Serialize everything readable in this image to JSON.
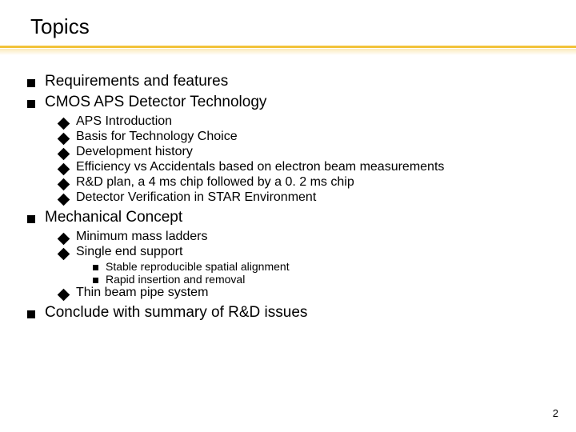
{
  "title": "Topics",
  "page_number": "2",
  "colors": {
    "underline": "#f2c33a",
    "text": "#000000",
    "background": "#ffffff"
  },
  "typography": {
    "font_family": "Comic Sans MS",
    "title_size_pt": 26,
    "l1_size_pt": 19,
    "l2_size_pt": 16,
    "l3_size_pt": 14
  },
  "items": {
    "l1_0": "Requirements and features",
    "l1_1": "CMOS APS Detector Technology",
    "l1_1_sub": {
      "l2_0": "APS Introduction",
      "l2_1": "Basis for Technology Choice",
      "l2_2": "Development history",
      "l2_3": "Efficiency vs Accidentals based on electron beam measurements",
      "l2_4": "R&D plan, a 4 ms chip followed by a 0. 2 ms chip",
      "l2_5": "Detector Verification in STAR Environment"
    },
    "l1_2": "Mechanical Concept",
    "l1_2_sub": {
      "l2_0": "Minimum mass ladders",
      "l2_1": "Single end support",
      "l2_1_sub": {
        "l3_0": "Stable reproducible spatial alignment",
        "l3_1": "Rapid insertion and removal"
      },
      "l2_2": "Thin beam pipe system"
    },
    "l1_3": "Conclude with summary of R&D issues"
  }
}
